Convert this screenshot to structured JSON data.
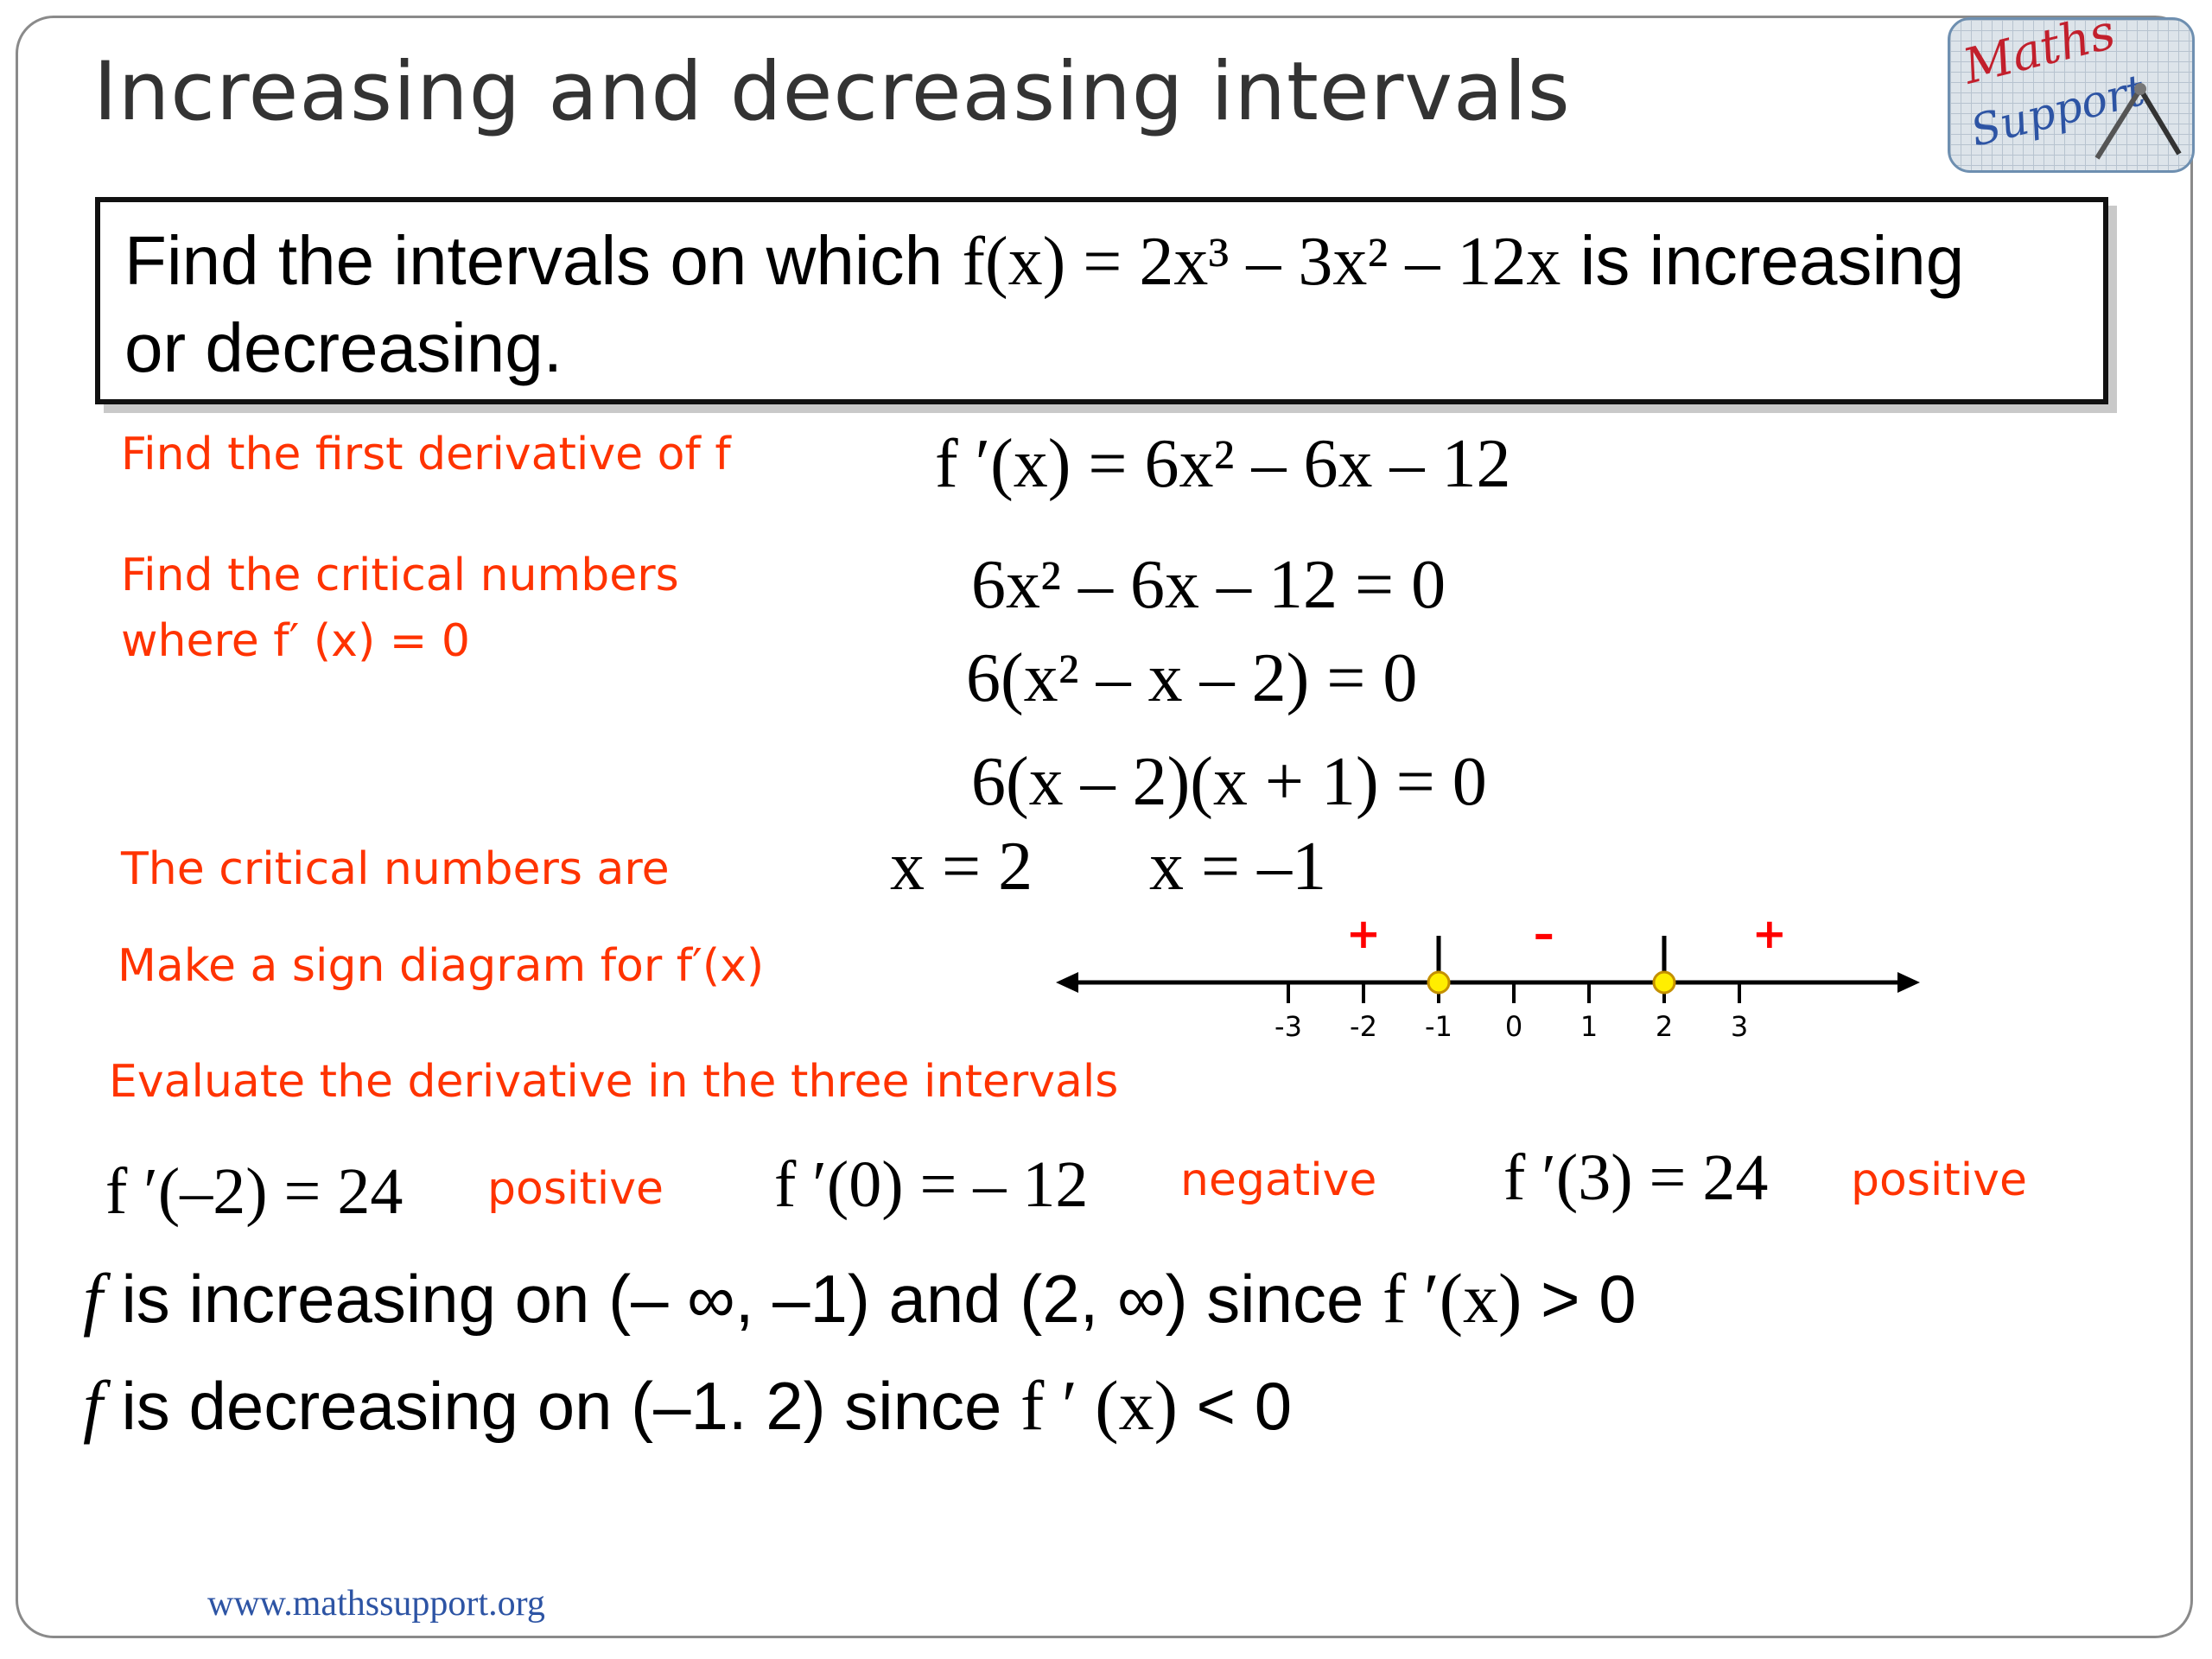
{
  "title": "Increasing and decreasing intervals",
  "logo": {
    "line1": "Maths",
    "line2": "Support"
  },
  "problem": {
    "prefix": "Find the intervals on which ",
    "function": "f(x) = 2x³ – 3x² – 12x",
    "suffix": " is increasing",
    "line2": "or decreasing."
  },
  "steps": {
    "first_derivative_label": "Find the first derivative of f",
    "first_derivative": "f ′(x) = 6x² – 6x – 12",
    "critical_label_1": "Find the critical numbers",
    "critical_label_2": "where  f′ (x) = 0",
    "eq1": "6x² – 6x – 12 = 0",
    "eq2": "6(x² – x – 2) = 0",
    "eq3": "6(x – 2)(x + 1) = 0",
    "critical_numbers_label": "The critical numbers are",
    "crit1": "x = 2",
    "crit2": "x = –1",
    "sign_label": "Make a sign diagram for f′(x)",
    "evaluate_label": "Evaluate the derivative in the three intervals"
  },
  "number_line": {
    "ticks": [
      "-3",
      "-2",
      "-1",
      "0",
      "1",
      "2",
      "3"
    ],
    "signs": [
      {
        "text": "+",
        "at": -2.0
      },
      {
        "text": "–",
        "at": 0.4
      },
      {
        "text": "+",
        "at": 3.4
      }
    ],
    "critical_points": [
      -1,
      2
    ],
    "sign_color": "#ff0000",
    "point_color": "#ffee00"
  },
  "evaluations": [
    {
      "expr": "f ′(–2) = 24",
      "result": "positive"
    },
    {
      "expr": "f ′(0) = – 12",
      "result": "negative"
    },
    {
      "expr": "f ′(3) = 24",
      "result": "positive"
    }
  ],
  "conclusions": {
    "increasing": {
      "f": "f",
      "text": " is increasing on (– ∞, –1) and (2, ∞) since ",
      "deriv": "f ′(x)",
      "tail": " > 0"
    },
    "decreasing": {
      "f": "f",
      "text": " is decreasing on (–1. 2) since ",
      "deriv": "f ′ (x)",
      "tail": " < 0"
    }
  },
  "footer": "www.mathssupport.org",
  "colors": {
    "accent_red": "#ff3300",
    "title_gray": "#333333",
    "footer_blue": "#2d54a4"
  }
}
